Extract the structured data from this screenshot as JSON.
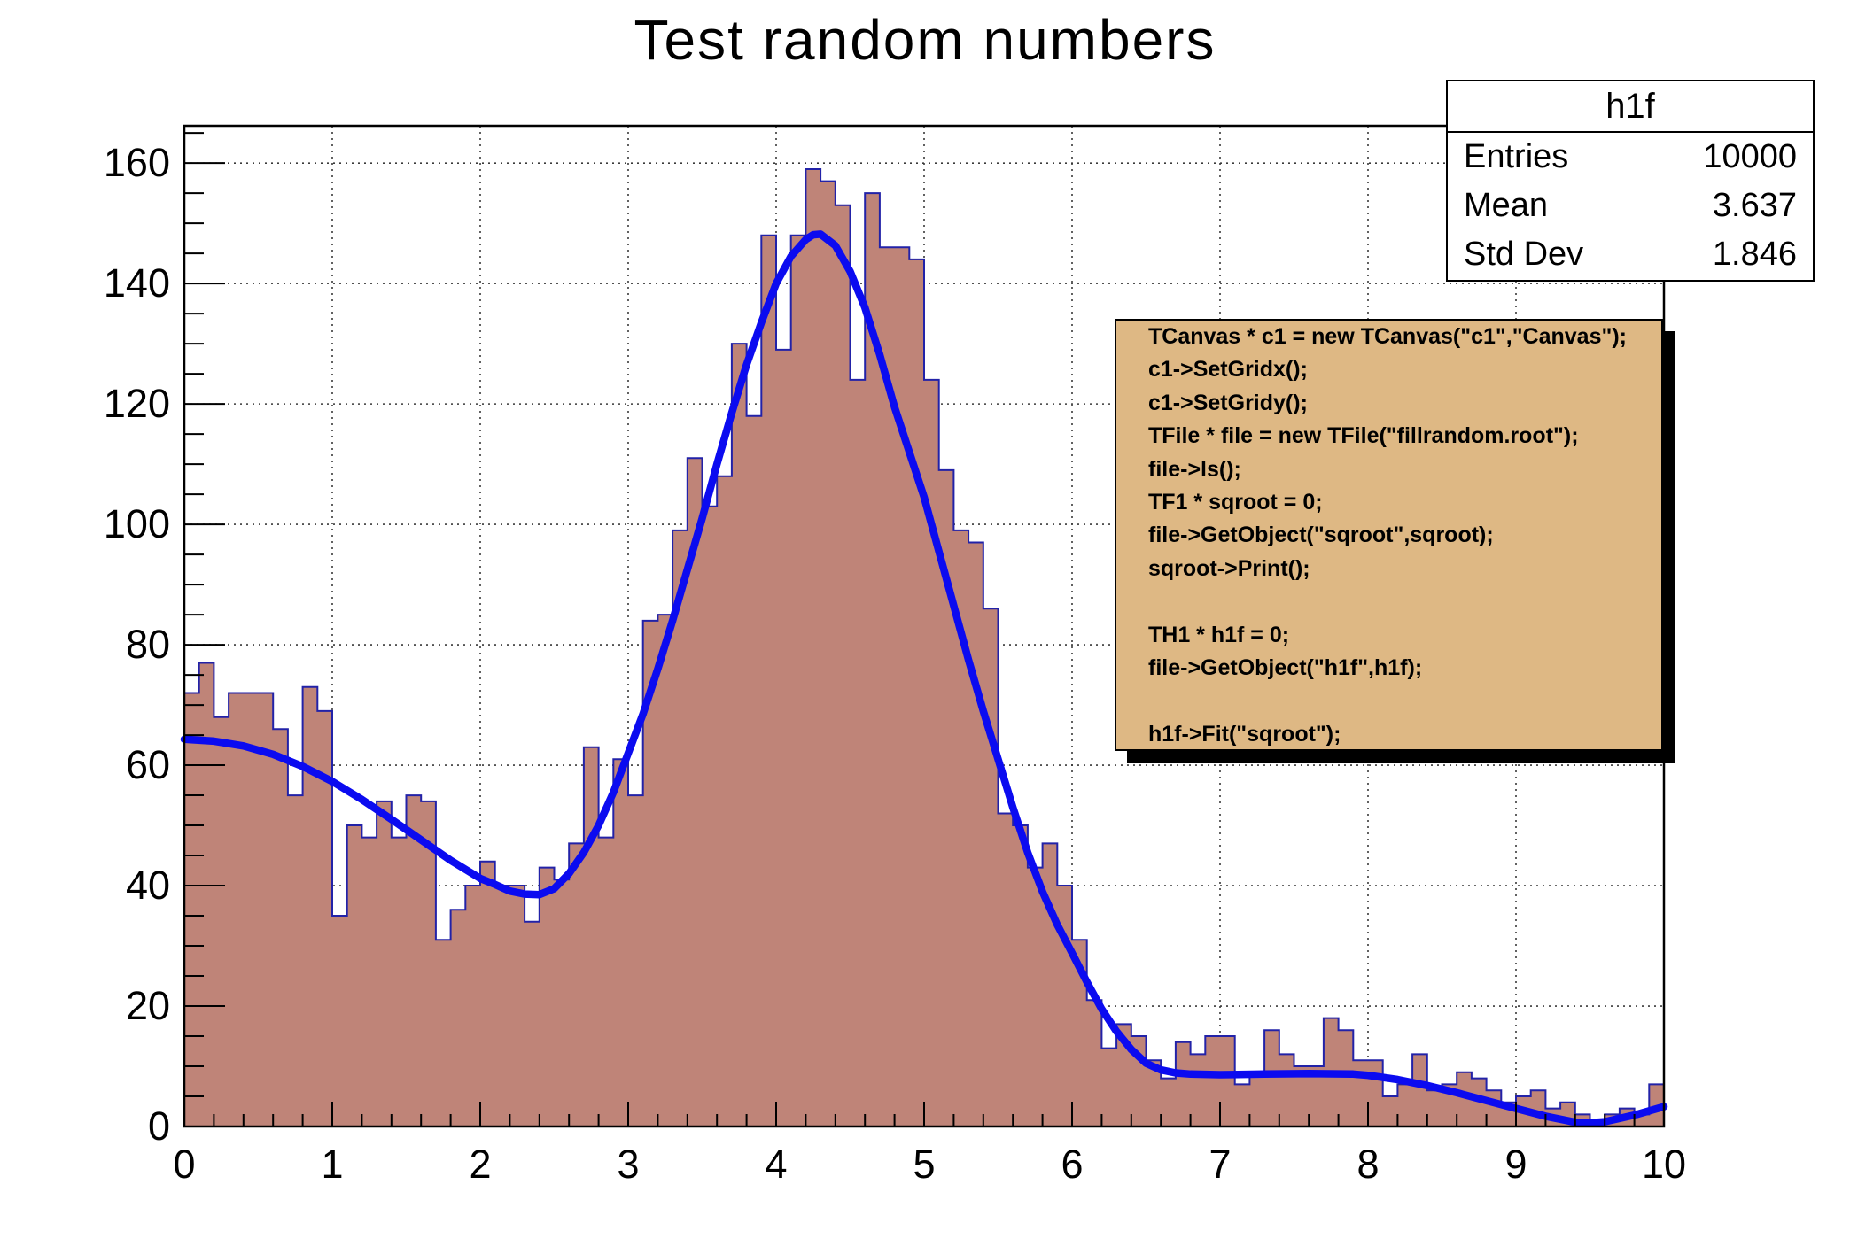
{
  "title": "Test random numbers",
  "stats_box": {
    "title": "h1f",
    "rows": [
      {
        "label": "Entries",
        "value": "10000"
      },
      {
        "label": "Mean",
        "value": "3.637"
      },
      {
        "label": "Std Dev",
        "value": "1.846"
      }
    ]
  },
  "code_box": {
    "lines": [
      "TCanvas * c1 = new TCanvas(\"c1\",\"Canvas\");",
      "c1->SetGridx();",
      "c1->SetGridy();",
      "TFile * file = new TFile(\"fillrandom.root\");",
      "file->ls();",
      "TF1 * sqroot = 0;",
      "file->GetObject(\"sqroot\",sqroot);",
      "sqroot->Print();",
      "",
      "TH1 * h1f = 0;",
      "file->GetObject(\"h1f\",h1f);",
      "",
      "h1f->Fit(\"sqroot\");"
    ]
  },
  "colors": {
    "hist_fill": "#bf8478",
    "hist_line": "#2222a8",
    "fit_line": "#0b0bf0",
    "pave_bg": "#deb884",
    "shadow": "#000000",
    "grid": "#3a3a3a",
    "frame": "#000000",
    "text": "#000000"
  },
  "chart_data": {
    "type": "bar",
    "title": "Test random numbers",
    "xlabel": "",
    "ylabel": "",
    "xlim": [
      0,
      10
    ],
    "ylim": [
      0,
      166.2
    ],
    "grid": true,
    "legend": "none",
    "x_major_ticks": [
      0,
      1,
      2,
      3,
      4,
      5,
      6,
      7,
      8,
      9,
      10
    ],
    "x_minor_step": 0.2,
    "y_major_ticks": [
      0,
      20,
      40,
      60,
      80,
      100,
      120,
      140,
      160
    ],
    "y_minor_step": 5,
    "bin_start": 0,
    "bin_width": 0.1,
    "bins": [
      72,
      77,
      68,
      72,
      72,
      72,
      66,
      55,
      73,
      69,
      35,
      50,
      48,
      54,
      48,
      55,
      54,
      31,
      36,
      40,
      44,
      40,
      40,
      34,
      43,
      41,
      47,
      63,
      48,
      61,
      55,
      84,
      85,
      99,
      111,
      103,
      108,
      130,
      118,
      148,
      129,
      148,
      159,
      157,
      153,
      124,
      155,
      146,
      146,
      144,
      124,
      109,
      99,
      97,
      86,
      52,
      50,
      43,
      47,
      40,
      31,
      21,
      13,
      17,
      15,
      11,
      8,
      14,
      12,
      15,
      15,
      7,
      9,
      16,
      12,
      10,
      10,
      18,
      16,
      11,
      11,
      5,
      7,
      12,
      6,
      7,
      9,
      8,
      6,
      4,
      5,
      6,
      3,
      4,
      2,
      1,
      2,
      3,
      2,
      7
    ],
    "fit_curve": [
      [
        0,
        64.3
      ],
      [
        0.2,
        64.0
      ],
      [
        0.4,
        63.2
      ],
      [
        0.6,
        61.8
      ],
      [
        0.8,
        59.8
      ],
      [
        1.0,
        57.3
      ],
      [
        1.2,
        54.3
      ],
      [
        1.4,
        51.0
      ],
      [
        1.6,
        47.6
      ],
      [
        1.8,
        44.2
      ],
      [
        2.0,
        41.2
      ],
      [
        2.1,
        40.2
      ],
      [
        2.2,
        39.1
      ],
      [
        2.3,
        38.6
      ],
      [
        2.4,
        38.5
      ],
      [
        2.5,
        39.5
      ],
      [
        2.6,
        42.0
      ],
      [
        2.7,
        45.5
      ],
      [
        2.8,
        50.0
      ],
      [
        2.9,
        55.5
      ],
      [
        3.0,
        62.0
      ],
      [
        3.1,
        68.5
      ],
      [
        3.2,
        76.0
      ],
      [
        3.3,
        84.0
      ],
      [
        3.4,
        92.5
      ],
      [
        3.5,
        101.0
      ],
      [
        3.6,
        110.0
      ],
      [
        3.7,
        118.5
      ],
      [
        3.8,
        126.5
      ],
      [
        3.9,
        133.5
      ],
      [
        4.0,
        140.0
      ],
      [
        4.1,
        144.5
      ],
      [
        4.2,
        147.3
      ],
      [
        4.25,
        148.1
      ],
      [
        4.3,
        148.2
      ],
      [
        4.4,
        146.3
      ],
      [
        4.5,
        142.0
      ],
      [
        4.6,
        136.0
      ],
      [
        4.7,
        128.2
      ],
      [
        4.8,
        119.5
      ],
      [
        4.9,
        112.0
      ],
      [
        5.0,
        104.5
      ],
      [
        5.1,
        95.5
      ],
      [
        5.2,
        86.5
      ],
      [
        5.3,
        77.5
      ],
      [
        5.4,
        69.0
      ],
      [
        5.5,
        61.0
      ],
      [
        5.6,
        53.0
      ],
      [
        5.7,
        45.5
      ],
      [
        5.8,
        39.0
      ],
      [
        5.9,
        33.5
      ],
      [
        6.0,
        28.8
      ],
      [
        6.1,
        24.0
      ],
      [
        6.2,
        19.5
      ],
      [
        6.3,
        15.8
      ],
      [
        6.4,
        12.8
      ],
      [
        6.5,
        10.5
      ],
      [
        6.6,
        9.4
      ],
      [
        6.7,
        8.9
      ],
      [
        6.8,
        8.7
      ],
      [
        7.0,
        8.6
      ],
      [
        7.3,
        8.7
      ],
      [
        7.6,
        8.8
      ],
      [
        7.9,
        8.7
      ],
      [
        8.0,
        8.5
      ],
      [
        8.2,
        7.8
      ],
      [
        8.4,
        6.8
      ],
      [
        8.6,
        5.6
      ],
      [
        8.8,
        4.3
      ],
      [
        9.0,
        3.0
      ],
      [
        9.2,
        1.7
      ],
      [
        9.4,
        0.7
      ],
      [
        9.5,
        0.6
      ],
      [
        9.6,
        0.8
      ],
      [
        9.8,
        1.9
      ],
      [
        10.0,
        3.3
      ]
    ]
  }
}
